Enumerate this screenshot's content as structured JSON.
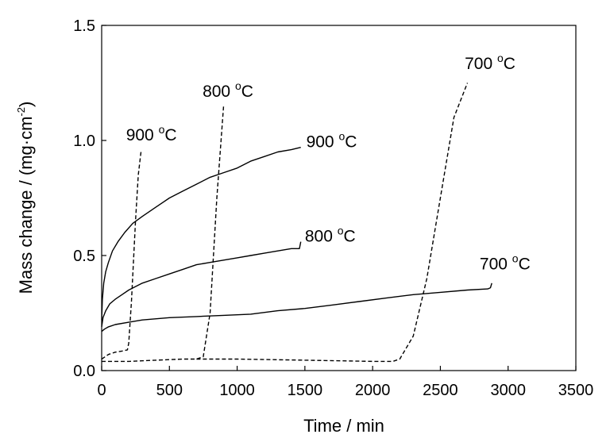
{
  "chart_data": {
    "type": "line",
    "title": "",
    "xlabel": "Time / min",
    "ylabel": {
      "text": "Mass change / (mg·cm",
      "sup": "-2",
      "end": ")"
    },
    "xlim": [
      0,
      3500
    ],
    "ylim": [
      0,
      1.5
    ],
    "xticks": [
      0,
      500,
      1000,
      1500,
      2000,
      2500,
      3000,
      3500
    ],
    "xtick_labels": [
      "0",
      "500",
      "1000",
      "1500",
      "2000",
      "2500",
      "3000",
      "3500"
    ],
    "yticks": [
      0,
      0.5,
      1.0,
      1.5
    ],
    "ytick_labels": [
      "0.0",
      "0.5",
      "1.0",
      "1.5"
    ],
    "grid": false,
    "legend": "none",
    "color": "#000000",
    "series": [
      {
        "label": "900 °C",
        "style": "solid",
        "x": [
          0,
          5,
          15,
          30,
          50,
          80,
          120,
          170,
          230,
          300,
          400,
          500,
          600,
          700,
          800,
          900,
          1000,
          1100,
          1200,
          1300,
          1400,
          1470
        ],
        "y": [
          0.22,
          0.31,
          0.38,
          0.43,
          0.47,
          0.52,
          0.56,
          0.6,
          0.64,
          0.67,
          0.71,
          0.75,
          0.78,
          0.81,
          0.84,
          0.86,
          0.88,
          0.91,
          0.93,
          0.95,
          0.96,
          0.97
        ]
      },
      {
        "label": "800 °C",
        "style": "solid",
        "x": [
          0,
          10,
          30,
          60,
          100,
          150,
          200,
          300,
          400,
          500,
          600,
          700,
          800,
          900,
          1000,
          1100,
          1200,
          1300,
          1400,
          1460,
          1470
        ],
        "y": [
          0.19,
          0.23,
          0.26,
          0.29,
          0.31,
          0.33,
          0.35,
          0.38,
          0.4,
          0.42,
          0.44,
          0.46,
          0.47,
          0.48,
          0.49,
          0.5,
          0.51,
          0.52,
          0.53,
          0.53,
          0.56
        ]
      },
      {
        "label": "700 °C",
        "style": "solid",
        "x": [
          0,
          20,
          50,
          100,
          200,
          300,
          500,
          700,
          900,
          1100,
          1300,
          1500,
          1700,
          1900,
          2100,
          2300,
          2500,
          2700,
          2850,
          2870,
          2880
        ],
        "y": [
          0.17,
          0.18,
          0.19,
          0.2,
          0.21,
          0.22,
          0.23,
          0.235,
          0.24,
          0.245,
          0.26,
          0.27,
          0.285,
          0.3,
          0.315,
          0.33,
          0.34,
          0.35,
          0.355,
          0.36,
          0.38
        ]
      },
      {
        "label": "900 °C",
        "style": "dashed",
        "x": [
          0,
          50,
          100,
          150,
          190,
          200,
          220,
          250,
          270,
          290
        ],
        "y": [
          0.05,
          0.07,
          0.08,
          0.085,
          0.09,
          0.12,
          0.3,
          0.65,
          0.85,
          0.95
        ]
      },
      {
        "label": "800 °C",
        "style": "dashed",
        "x": [
          0,
          200,
          400,
          600,
          700,
          750,
          800,
          850,
          900
        ],
        "y": [
          0.04,
          0.04,
          0.045,
          0.05,
          0.05,
          0.06,
          0.25,
          0.75,
          1.15
        ]
      },
      {
        "label": "700 °C",
        "style": "dashed",
        "x": [
          700,
          1000,
          1500,
          2000,
          2150,
          2200,
          2300,
          2400,
          2500,
          2600,
          2700
        ],
        "y": [
          0.05,
          0.05,
          0.045,
          0.04,
          0.04,
          0.05,
          0.15,
          0.4,
          0.75,
          1.1,
          1.25
        ]
      }
    ],
    "annotations": [
      {
        "text": "900 ",
        "sup": "o",
        "unit": "C",
        "x": 1510,
        "y": 0.97
      },
      {
        "text": "800 ",
        "sup": "o",
        "unit": "C",
        "x": 1500,
        "y": 0.56
      },
      {
        "text": "700 ",
        "sup": "o",
        "unit": "C",
        "x": 2790,
        "y": 0.44
      },
      {
        "text": "900 ",
        "sup": "o",
        "unit": "C",
        "x": 180,
        "y": 1.0
      },
      {
        "text": "800 ",
        "sup": "o",
        "unit": "C",
        "x": 745,
        "y": 1.19
      },
      {
        "text": "700 ",
        "sup": "o",
        "unit": "C",
        "x": 2680,
        "y": 1.31
      }
    ]
  }
}
